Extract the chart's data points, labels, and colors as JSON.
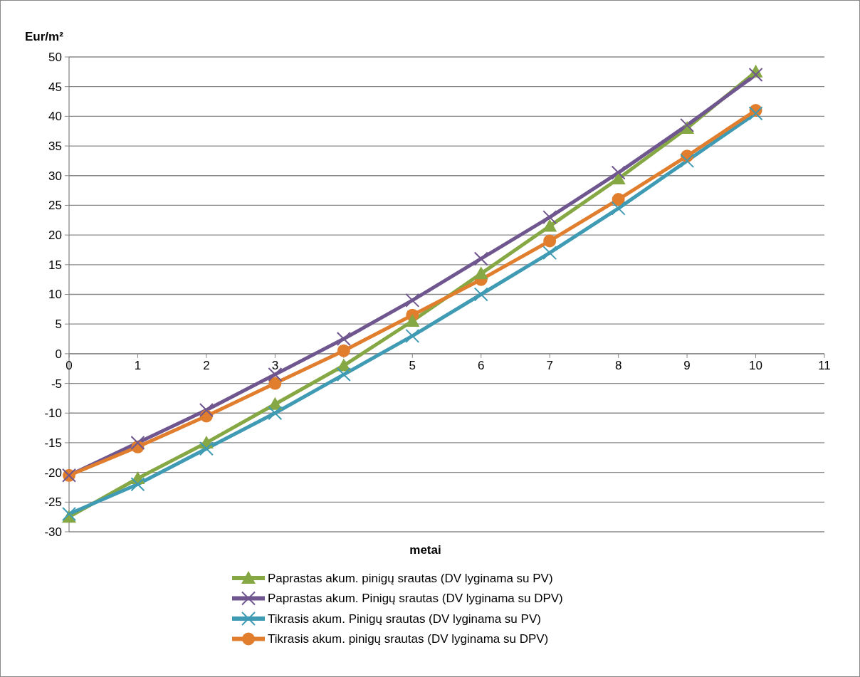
{
  "chart_data": {
    "type": "line",
    "ylabel": "Eur/m²",
    "xlabel": "metai",
    "x": [
      0,
      1,
      2,
      3,
      4,
      5,
      6,
      7,
      8,
      9,
      10
    ],
    "xlim": [
      0,
      11
    ],
    "xticks": [
      0,
      1,
      2,
      3,
      4,
      5,
      6,
      7,
      8,
      9,
      10,
      11
    ],
    "ylim": [
      -30,
      50
    ],
    "yticks": [
      -30,
      -25,
      -20,
      -15,
      -10,
      -5,
      0,
      5,
      10,
      15,
      20,
      25,
      30,
      35,
      40,
      45,
      50
    ],
    "grid": "y",
    "legend": "bottom",
    "line_style": "solid",
    "series": [
      {
        "name": "Paprastas akum. pinigų srautas (DV lyginama su PV)",
        "color": "#86a844",
        "marker": "triangle",
        "values": [
          -27.5,
          -21,
          -15,
          -8.5,
          -2,
          5.5,
          13.5,
          21.5,
          29.5,
          38,
          47.5
        ]
      },
      {
        "name": "Paprastas akum. Pinigų srautas (DV lyginama su DPV)",
        "color": "#6f568f",
        "marker": "cross",
        "values": [
          -20.5,
          -15,
          -9.5,
          -3.5,
          2.5,
          9,
          16,
          23,
          30.5,
          38.5,
          47
        ]
      },
      {
        "name": "Tikrasis akum. Pinigų srautas (DV lyginama su PV)",
        "color": "#3f9ab3",
        "marker": "cross",
        "values": [
          -27,
          -22,
          -16,
          -10,
          -3.5,
          3,
          10,
          17,
          24.5,
          32.5,
          40.5
        ]
      },
      {
        "name": "Tikrasis akum. pinigų srautas (DV lyginama su DPV)",
        "color": "#e07e2e",
        "marker": "circle",
        "values": [
          -20.5,
          -15.7,
          -10.5,
          -5,
          0.5,
          6.5,
          12.5,
          19,
          26,
          33.3,
          41
        ]
      }
    ]
  }
}
